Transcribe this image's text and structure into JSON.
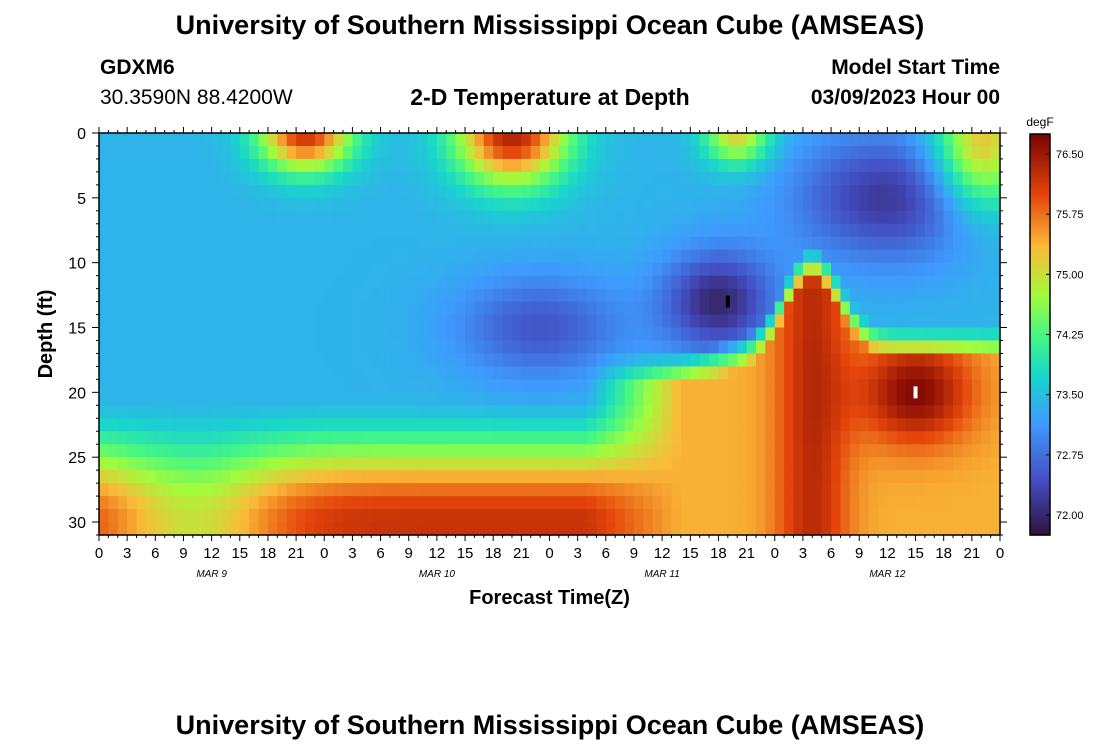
{
  "header": {
    "title": "University of Southern Mississippi Ocean Cube (AMSEAS)",
    "station_id": "GDXM6",
    "coordinates": "30.3590N  88.4200W",
    "subtitle": "2-D Temperature at Depth",
    "model_start_label": "Model Start Time",
    "model_start_value": "03/09/2023 Hour 00"
  },
  "footer": {
    "title": "University of Southern Mississippi Ocean Cube (AMSEAS)"
  },
  "colors": {
    "background": "#ffffff",
    "axis": "#000000",
    "marker_dark": "#000000",
    "marker_light": "#ffffff"
  },
  "chart_data": {
    "type": "heatmap",
    "title": "2-D Temperature at Depth",
    "xlabel": "Forecast Time(Z)",
    "ylabel": "Depth (ft)",
    "x_tick_labels": [
      "0",
      "3",
      "6",
      "9",
      "12",
      "15",
      "18",
      "21",
      "0",
      "3",
      "6",
      "9",
      "12",
      "15",
      "18",
      "21",
      "0",
      "3",
      "6",
      "9",
      "12",
      "15",
      "18",
      "21",
      "0",
      "3",
      "6",
      "9",
      "12",
      "15",
      "18",
      "21",
      "0"
    ],
    "x_range_hours": [
      0,
      96
    ],
    "day_labels": [
      {
        "label": "MAR 9",
        "hour": 12
      },
      {
        "label": "MAR 10",
        "hour": 36
      },
      {
        "label": "MAR 11",
        "hour": 60
      },
      {
        "label": "MAR 12",
        "hour": 84
      }
    ],
    "y_ticks": [
      0,
      5,
      10,
      15,
      20,
      25,
      30
    ],
    "y_tick_labels": [
      "0",
      "5",
      "10",
      "15",
      "20",
      "25",
      "30"
    ],
    "y_range_ft": [
      0,
      31
    ],
    "colorbar": {
      "unit": "degF",
      "range": [
        71.75,
        76.75
      ],
      "tick_values": [
        72.0,
        72.75,
        73.5,
        74.25,
        75.0,
        75.75,
        76.5
      ],
      "tick_labels": [
        "72.00",
        "72.75",
        "73.50",
        "74.25",
        "75.00",
        "75.75",
        "76.50"
      ]
    },
    "min_marker": {
      "hour": 67,
      "depth_ft": 13
    },
    "max_marker": {
      "hour": 87,
      "depth_ft": 20
    },
    "temperature_features_degF": [
      {
        "hour": 0,
        "depth_ft": 0,
        "value": 73.5
      },
      {
        "hour": 8,
        "depth_ft": 10,
        "value": 73.3
      },
      {
        "hour": 22,
        "depth_ft": 1,
        "value": 76.2
      },
      {
        "hour": 20,
        "depth_ft": 28,
        "value": 76.2
      },
      {
        "hour": 44,
        "depth_ft": 1,
        "value": 76.4
      },
      {
        "hour": 46,
        "depth_ft": 15,
        "value": 72.5
      },
      {
        "hour": 66,
        "depth_ft": 13,
        "value": 72.0
      },
      {
        "hour": 68,
        "depth_ft": 1,
        "value": 75.6
      },
      {
        "hour": 76,
        "depth_ft": 14,
        "value": 76.3
      },
      {
        "hour": 87,
        "depth_ft": 20,
        "value": 76.6
      },
      {
        "hour": 93,
        "depth_ft": 2,
        "value": 75.3
      }
    ]
  }
}
